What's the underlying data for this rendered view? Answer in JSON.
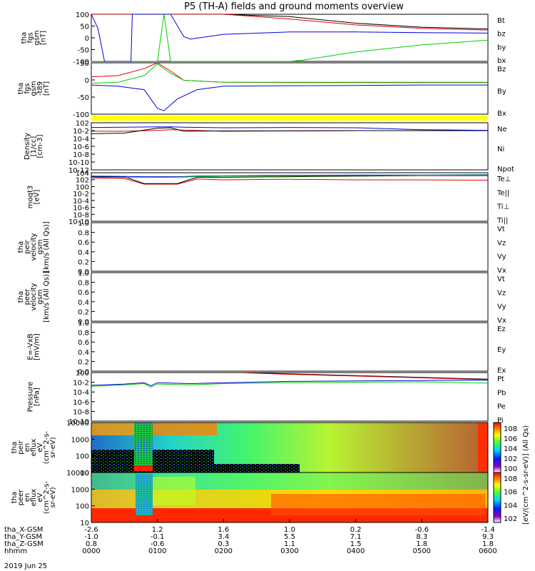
{
  "title": "P5 (TH-A) fields and ground moments overview",
  "date_label": "2019 Jun 25",
  "colors": {
    "black": "#000000",
    "red": "#e00000",
    "green": "#00d000",
    "blue": "#0000e0",
    "yellow": "#ffff00"
  },
  "ephemeris": {
    "rows": [
      {
        "label": "tha_X-GSM",
        "values": [
          "-2.6",
          "1.2",
          "1.6",
          "1.0",
          "0.2",
          "-0.6",
          "-1.4"
        ]
      },
      {
        "label": "tha_Y-GSM",
        "values": [
          "-1.0",
          "-0.1",
          "3.4",
          "5.5",
          "7.1",
          "8.3",
          "9.3"
        ]
      },
      {
        "label": "tha_Z-GSM",
        "values": [
          "0.8",
          "-0.6",
          "0.3",
          "1.1",
          "1.5",
          "1.8",
          "1.8"
        ]
      },
      {
        "label": "hhmm",
        "values": [
          "0000",
          "0100",
          "0200",
          "0300",
          "0400",
          "0500",
          "0600"
        ]
      }
    ]
  },
  "chart_data": [
    {
      "type": "line",
      "ylabel": [
        "tha",
        "fgs",
        "gsm",
        "[nT]"
      ],
      "ylim": [
        -100,
        100
      ],
      "ticks": [
        "100",
        "50",
        "0",
        "-50",
        "-100"
      ],
      "series": [
        {
          "name": "Bt",
          "color": "black",
          "x": [
            0,
            0.6,
            0.9,
            1.3,
            2,
            3,
            4,
            5,
            6
          ],
          "values": [
            100,
            100,
            100,
            100,
            100,
            90,
            62,
            45,
            38
          ]
        },
        {
          "name": "bz",
          "color": "red",
          "x": [
            0,
            0.6,
            0.9,
            1.3,
            2,
            3,
            4,
            5,
            6
          ],
          "values": [
            100,
            100,
            100,
            100,
            100,
            80,
            55,
            40,
            33
          ]
        },
        {
          "name": "by",
          "color": "green",
          "x": [
            0,
            1.0,
            1.1,
            1.2,
            2,
            3,
            3.2,
            4,
            5,
            6
          ],
          "values": [
            -100,
            -100,
            100,
            -100,
            -100,
            -100,
            -95,
            -60,
            -30,
            -10
          ]
        },
        {
          "name": "bx",
          "color": "blue",
          "x": [
            0,
            0.1,
            0.2,
            0.6,
            0.62,
            1.2,
            1.4,
            1.5,
            2,
            3,
            4,
            5,
            6
          ],
          "values": [
            100,
            40,
            -100,
            -100,
            100,
            100,
            5,
            -5,
            15,
            25,
            25,
            22,
            20
          ]
        }
      ]
    },
    {
      "type": "line",
      "ylabel": [
        "tha",
        "fgs",
        "gsm",
        "-t89",
        "[nT]"
      ],
      "ylim": [
        -125,
        95
      ],
      "ticks": [
        "50",
        "0",
        "-50",
        "-100"
      ],
      "series": [
        {
          "name": "Bz",
          "color": "red",
          "x": [
            0,
            0.4,
            0.8,
            1.0,
            1.2,
            1.4,
            2,
            3,
            4,
            5,
            6
          ],
          "values": [
            35,
            40,
            70,
            95,
            60,
            20,
            12,
            10,
            10,
            10,
            10
          ]
        },
        {
          "name": "By",
          "color": "green",
          "x": [
            0,
            0.4,
            0.8,
            1.0,
            1.2,
            1.4,
            2,
            3,
            4,
            5,
            6
          ],
          "values": [
            8,
            12,
            40,
            90,
            50,
            20,
            12,
            12,
            12,
            12,
            12
          ]
        },
        {
          "name": "Bx",
          "color": "blue",
          "x": [
            0,
            0.4,
            0.8,
            1.0,
            1.1,
            1.3,
            1.6,
            2,
            3,
            4,
            5,
            6
          ],
          "values": [
            0,
            -5,
            -20,
            -100,
            -110,
            -60,
            -20,
            -5,
            -3,
            -2,
            0,
            0
          ]
        }
      ]
    },
    {
      "type": "line",
      "ylabel": [
        "Density",
        "[1/cc]",
        "[cm-3]"
      ],
      "ylim": [
        -12,
        3
      ],
      "log": true,
      "ticks": [
        "10^2",
        "10^-2",
        "10^-4",
        "10^-6",
        "10^-8",
        "10^-10",
        "10^-12"
      ],
      "series": [
        {
          "name": "Ne",
          "color": "red",
          "x": [
            0,
            0.5,
            1.0,
            1.2,
            2,
            3,
            4,
            5,
            6
          ],
          "values": [
            0.3,
            0.3,
            0.6,
            0.8,
            0.3,
            0.4,
            0.5,
            0.5,
            0.5
          ]
        },
        {
          "name": "Ni",
          "color": "black",
          "x": [
            0,
            0.5,
            1.0,
            1.2,
            1.4,
            2,
            3,
            4,
            5,
            6
          ],
          "values": [
            -0.5,
            -0.3,
            1.3,
            1.4,
            0.3,
            0.4,
            0.4,
            0.5,
            0.5,
            0.5
          ]
        },
        {
          "name": "Npot",
          "color": "blue",
          "x": [
            0,
            0.5,
            1.0,
            1.2,
            1.4,
            2,
            3,
            4,
            5,
            6
          ],
          "values": [
            1.5,
            1.6,
            1.7,
            1.7,
            1.6,
            1.4,
            1.5,
            1.4,
            0.8,
            0.6
          ]
        }
      ]
    },
    {
      "type": "line",
      "ylabel": [
        "moqt3",
        "[eV]"
      ],
      "ylim": [
        -12,
        5
      ],
      "log": true,
      "ticks": [
        "10^4",
        "10^2",
        "10^0",
        "10^-2",
        "10^-4",
        "10^-6",
        "10^-8",
        "10^-10"
      ],
      "series": [
        {
          "name": "Te⊥",
          "color": "red",
          "x": [
            0,
            0.5,
            0.8,
            1.3,
            1.6,
            2,
            3,
            4,
            5,
            6
          ],
          "values": [
            3.2,
            3.0,
            1.0,
            1.0,
            2.8,
            2.5,
            2.7,
            2.5,
            2.5,
            2.4
          ]
        },
        {
          "name": "Te||",
          "color": "black",
          "x": [
            0,
            0.5,
            0.8,
            1.3,
            1.6,
            2,
            3,
            4,
            5,
            6
          ],
          "values": [
            3.6,
            3.6,
            1.2,
            1.2,
            3.4,
            3.4,
            3.6,
            3.8,
            4.0,
            4.0
          ]
        },
        {
          "name": "Ti⊥",
          "color": "blue",
          "x": [
            0,
            0.5,
            0.8,
            1.3,
            1.6,
            2,
            3,
            4,
            5,
            6
          ],
          "values": [
            3.8,
            3.7,
            3.6,
            3.6,
            3.8,
            3.9,
            4.1,
            4.2,
            4.2,
            4.3
          ]
        },
        {
          "name": "Ti||",
          "color": "green",
          "x": [
            0,
            0.5,
            0.8,
            1.3,
            1.6,
            2,
            3,
            4,
            5,
            6
          ],
          "values": [
            3.4,
            3.3,
            3.3,
            3.4,
            3.6,
            3.8,
            3.9,
            4.0,
            4.1,
            4.2
          ]
        }
      ]
    },
    {
      "type": "line",
      "ylabel": [
        "tha",
        "peir",
        "velocity",
        "gsm",
        "[km/s (All Qs)]"
      ],
      "ylim": [
        0,
        1
      ],
      "ticks": [
        "1.0",
        "0.8",
        "0.6",
        "0.4",
        "0.2",
        "0.0"
      ],
      "series": [
        {
          "name": "Vt",
          "color": "black",
          "values": []
        },
        {
          "name": "Vz",
          "color": "red",
          "values": []
        },
        {
          "name": "Vy",
          "color": "green",
          "values": []
        },
        {
          "name": "Vx",
          "color": "blue",
          "values": []
        }
      ]
    },
    {
      "type": "line",
      "ylabel": [
        "tha",
        "peer",
        "velocity",
        "gsm",
        "[km/s (All Qs)]"
      ],
      "ylim": [
        0,
        1
      ],
      "ticks": [
        "1.0",
        "0.8",
        "0.6",
        "0.4",
        "0.2",
        "0.0"
      ],
      "series": [
        {
          "name": "Vt",
          "color": "black",
          "values": []
        },
        {
          "name": "Vz",
          "color": "red",
          "values": []
        },
        {
          "name": "Vy",
          "color": "green",
          "values": []
        },
        {
          "name": "Vx",
          "color": "blue",
          "values": []
        }
      ]
    },
    {
      "type": "line",
      "ylabel": [
        "E=-VxB",
        "[mV/m]"
      ],
      "ylim": [
        0,
        1
      ],
      "ticks": [
        "1.0",
        "0.8",
        "0.6",
        "0.4",
        "0.2",
        "0.0"
      ],
      "series": [
        {
          "name": "Ez",
          "color": "red",
          "values": []
        },
        {
          "name": "Ey",
          "color": "green",
          "values": []
        },
        {
          "name": "Ex",
          "color": "blue",
          "values": []
        }
      ]
    },
    {
      "type": "line",
      "ylabel": [
        "Pressure",
        "[nPa]"
      ],
      "ylim": [
        -10,
        1
      ],
      "log": true,
      "ticks": [
        "10^0",
        "10^-2",
        "10^-4",
        "10^-6",
        "10^-8",
        "10^-10"
      ],
      "series": [
        {
          "name": "Pt",
          "color": "black",
          "x": [
            2.3,
            3,
            4,
            5,
            6
          ],
          "values": [
            1.0,
            0.7,
            0.3,
            -0.1,
            -0.5
          ]
        },
        {
          "name": "Pb",
          "color": "red",
          "x": [
            2.3,
            3,
            4,
            5,
            6
          ],
          "values": [
            0.95,
            0.6,
            0.2,
            -0.2,
            -0.6
          ]
        },
        {
          "name": "Pe",
          "color": "green",
          "x": [
            0,
            0.5,
            0.8,
            0.9,
            1.0,
            1.5,
            2,
            3,
            4,
            5,
            6
          ],
          "values": [
            -2.1,
            -1.8,
            -1.5,
            -2.3,
            -1.6,
            -1.8,
            -1.5,
            -1.3,
            -1.2,
            -1.1,
            -1.4
          ]
        },
        {
          "name": "Pi",
          "color": "blue",
          "x": [
            0,
            0.5,
            0.8,
            0.9,
            1.0,
            1.5,
            2,
            3,
            4,
            5,
            6
          ],
          "values": [
            -1.9,
            -1.6,
            -1.3,
            -2.0,
            -1.3,
            -1.5,
            -1.3,
            -1.0,
            -0.9,
            -0.8,
            -0.7
          ]
        }
      ]
    },
    {
      "type": "heatmap",
      "ylabel": [
        "tha",
        "peir",
        "en",
        "eflux",
        "eV",
        "(cm^2-s-",
        "sr-eV)"
      ],
      "ylim": [
        5,
        30000
      ],
      "log": true,
      "ticks": [
        "10000",
        "1000",
        "100",
        "10"
      ],
      "colorbar_ticks": [
        "10^8",
        "10^6",
        "10^4",
        "10^2",
        "10^0"
      ],
      "colorbar_label": "[eV/(cm^2-s-sr-eV)] (All Qs)"
    },
    {
      "type": "heatmap",
      "ylabel": [
        "tha",
        "peer",
        "en",
        "eflux",
        "eV",
        "(cm^2-s-",
        "sr-eV)"
      ],
      "ylim": [
        5,
        30000
      ],
      "log": true,
      "ticks": [
        "10000",
        "1000",
        "100",
        "10"
      ],
      "colorbar_ticks": [
        "10^8",
        "10^6",
        "10^4",
        "10^2"
      ],
      "colorbar_label": "[eV/(cm^2-s-sr-eV)]"
    }
  ]
}
